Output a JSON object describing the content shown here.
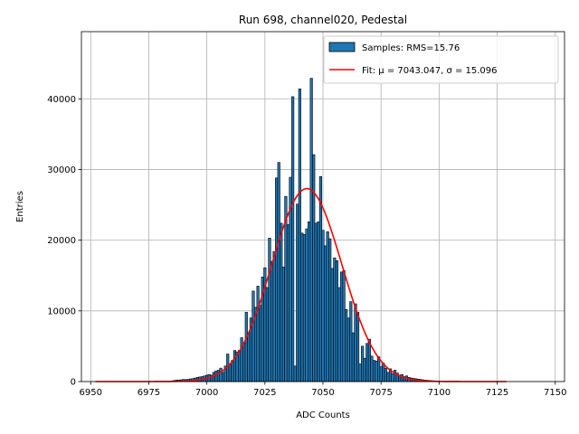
{
  "chart_data": {
    "type": "bar",
    "title": "Run 698, channel020, Pedestal",
    "xlabel": "ADC Counts",
    "ylabel": "Entries",
    "xlim": [
      6946,
      7154
    ],
    "ylim": [
      0,
      49500
    ],
    "xticks": [
      6950,
      6975,
      7000,
      7025,
      7050,
      7075,
      7100,
      7125,
      7150
    ],
    "yticks": [
      0,
      10000,
      20000,
      30000,
      40000
    ],
    "grid": true,
    "legend_position": "top-right",
    "bar_color": "#1f77b4",
    "fit_color": "#ff0000",
    "series": [
      {
        "name": "Samples: RMS=15.76",
        "x": [
          6985,
          6986,
          6987,
          6988,
          6989,
          6990,
          6991,
          6992,
          6993,
          6994,
          6995,
          6996,
          6997,
          6998,
          6999,
          7000,
          7001,
          7002,
          7003,
          7004,
          7005,
          7006,
          7007,
          7008,
          7009,
          7010,
          7011,
          7012,
          7013,
          7014,
          7015,
          7016,
          7017,
          7018,
          7019,
          7020,
          7021,
          7022,
          7023,
          7024,
          7025,
          7026,
          7027,
          7028,
          7029,
          7030,
          7031,
          7032,
          7033,
          7034,
          7035,
          7036,
          7037,
          7038,
          7039,
          7040,
          7041,
          7042,
          7043,
          7044,
          7045,
          7046,
          7047,
          7048,
          7049,
          7050,
          7051,
          7052,
          7053,
          7054,
          7055,
          7056,
          7057,
          7058,
          7059,
          7060,
          7061,
          7062,
          7063,
          7064,
          7065,
          7066,
          7067,
          7068,
          7069,
          7070,
          7071,
          7072,
          7073,
          7074,
          7075,
          7076,
          7077,
          7078,
          7079,
          7080,
          7081,
          7082,
          7083,
          7084,
          7085,
          7086,
          7087,
          7088,
          7089,
          7090,
          7091,
          7092,
          7093,
          7094,
          7095,
          7096,
          7097,
          7098,
          7099,
          7100
        ],
        "values": [
          100,
          150,
          200,
          220,
          250,
          300,
          280,
          320,
          380,
          420,
          500,
          600,
          650,
          700,
          800,
          900,
          1000,
          900,
          1300,
          1500,
          1600,
          1900,
          1300,
          2200,
          3900,
          2500,
          3000,
          4400,
          4200,
          4400,
          6200,
          5400,
          9800,
          6900,
          9000,
          12800,
          10500,
          13500,
          10800,
          14800,
          16100,
          13300,
          20300,
          17000,
          18400,
          28800,
          31000,
          22400,
          16200,
          26200,
          22200,
          28900,
          40300,
          2200,
          25100,
          41400,
          21000,
          20800,
          21600,
          22600,
          42900,
          32100,
          22400,
          22600,
          29000,
          21400,
          19200,
          21200,
          20200,
          16000,
          17500,
          17100,
          13300,
          15500,
          15700,
          10200,
          9000,
          11300,
          6900,
          11000,
          9800,
          2500,
          5000,
          3300,
          5400,
          6000,
          3600,
          3000,
          2900,
          3500,
          2100,
          2600,
          1900,
          1300,
          1800,
          1100,
          1600,
          1200,
          900,
          1000,
          700,
          800,
          600,
          500,
          450,
          400,
          350,
          300,
          250,
          200,
          180,
          150,
          120,
          100,
          80,
          60
        ]
      },
      {
        "name": "Fit: μ = 7043.047, σ = 15.096",
        "type": "line",
        "mu": 7043.047,
        "sigma": 15.096,
        "amplitude": 27300,
        "x_range": [
          6952,
          7129
        ]
      }
    ]
  }
}
